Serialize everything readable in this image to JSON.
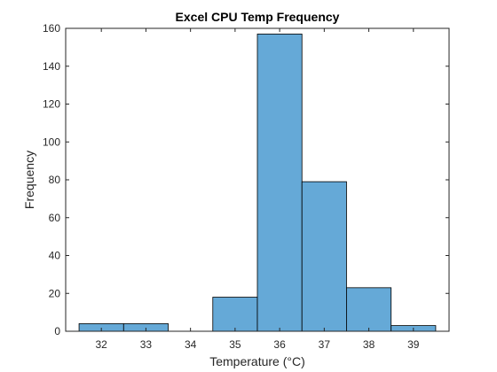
{
  "chart_data": {
    "type": "histogram",
    "title": "Excel CPU Temp Frequency",
    "xlabel": "Temperature (°C)",
    "ylabel": "Frequency",
    "xlim": [
      31.2,
      39.8
    ],
    "ylim": [
      0,
      160
    ],
    "xticks": [
      32,
      33,
      34,
      35,
      36,
      37,
      38,
      39
    ],
    "yticks": [
      0,
      20,
      40,
      60,
      80,
      100,
      120,
      140,
      160
    ],
    "bin_width": 1,
    "bins": [
      {
        "x0": 31.5,
        "x1": 32.5,
        "value": 4
      },
      {
        "x0": 32.5,
        "x1": 33.5,
        "value": 4
      },
      {
        "x0": 33.5,
        "x1": 34.5,
        "value": 0
      },
      {
        "x0": 34.5,
        "x1": 35.5,
        "value": 18
      },
      {
        "x0": 35.5,
        "x1": 36.5,
        "value": 157
      },
      {
        "x0": 36.5,
        "x1": 37.5,
        "value": 79
      },
      {
        "x0": 37.5,
        "x1": 38.5,
        "value": 23
      },
      {
        "x0": 38.5,
        "x1": 39.5,
        "value": 3
      }
    ],
    "bar_color": "#65a9d7",
    "edge_color": "#000000",
    "grid": false
  }
}
